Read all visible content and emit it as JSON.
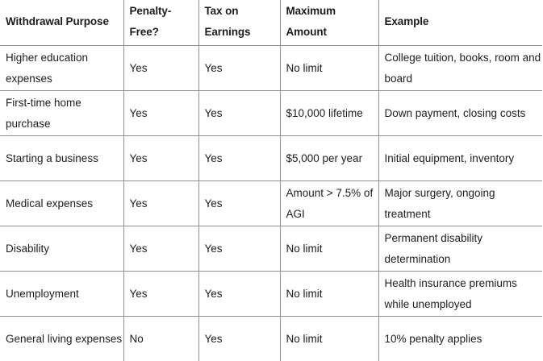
{
  "table": {
    "headers": [
      "Withdrawal Purpose",
      "Penalty-Free?",
      "Tax on Earnings",
      "Maximum Amount",
      "Example"
    ],
    "rows": [
      [
        "Higher education expenses",
        "Yes",
        "Yes",
        "No limit",
        "College tuition, books, room and board"
      ],
      [
        "First-time home purchase",
        "Yes",
        "Yes",
        "$10,000 lifetime",
        "Down payment, closing costs"
      ],
      [
        "Starting a business",
        "Yes",
        "Yes",
        "$5,000 per year",
        "Initial equipment, inventory"
      ],
      [
        "Medical expenses",
        "Yes",
        "Yes",
        "Amount > 7.5% of AGI",
        "Major surgery, ongoing treatment"
      ],
      [
        "Disability",
        "Yes",
        "Yes",
        "No limit",
        "Permanent disability determination"
      ],
      [
        "Unemployment",
        "Yes",
        "Yes",
        "No limit",
        "Health insurance premiums while unemployed"
      ],
      [
        "General living expenses",
        "No",
        "Yes",
        "No limit",
        "10% penalty applies"
      ]
    ]
  }
}
